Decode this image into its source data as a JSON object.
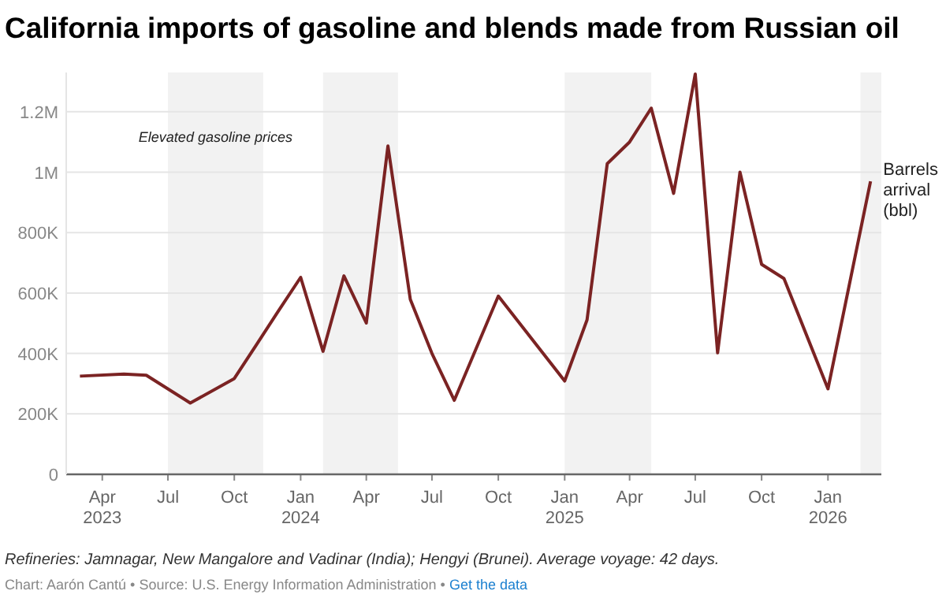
{
  "chart_data": {
    "type": "line",
    "title": "California imports of gasoline and blends made from Russian oil",
    "x": [
      "2023-03",
      "2023-05",
      "2023-06",
      "2023-08",
      "2023-10",
      "2023-11",
      "2023-12",
      "2024-01",
      "2024-02",
      "2024-03",
      "2024-04",
      "2024-05",
      "2024-06",
      "2024-07",
      "2024-08",
      "2024-10",
      "2025-01",
      "2025-02",
      "2025-03",
      "2025-04",
      "2025-05",
      "2025-06",
      "2025-07",
      "2025-08",
      "2025-09",
      "2025-10",
      "2025-11",
      "2026-01",
      "2026-03"
    ],
    "series": [
      {
        "name": "Barrels arrival (bbl)",
        "color": "#7b2323",
        "values": [
          325000,
          332000,
          328000,
          236000,
          317000,
          430000,
          540000,
          652000,
          407000,
          657000,
          501000,
          1087000,
          579000,
          400000,
          245000,
          590000,
          309000,
          511000,
          1028000,
          1100000,
          1212000,
          930000,
          1325000,
          402000,
          1000000,
          695000,
          648000,
          283000,
          970000
        ]
      }
    ],
    "xlim": [
      "2023-02-10",
      "2026-03-16"
    ],
    "xticks": [
      {
        "value": "2023-04",
        "label": "Apr 2023"
      },
      {
        "value": "2023-07",
        "label": "Jul"
      },
      {
        "value": "2023-10",
        "label": "Oct"
      },
      {
        "value": "2024-01",
        "label": "Jan 2024"
      },
      {
        "value": "2024-04",
        "label": "Apr"
      },
      {
        "value": "2024-07",
        "label": "Jul"
      },
      {
        "value": "2024-10",
        "label": "Oct"
      },
      {
        "value": "2025-01",
        "label": "Jan 2025"
      },
      {
        "value": "2025-04",
        "label": "Apr"
      },
      {
        "value": "2025-07",
        "label": "Jul"
      },
      {
        "value": "2025-10",
        "label": "Oct"
      },
      {
        "value": "2026-01",
        "label": "Jan 2026"
      }
    ],
    "ylim": [
      0,
      1330000
    ],
    "yticks": [
      0,
      {
        "value": 200000,
        "label": "200K"
      },
      {
        "value": 400000,
        "label": "400K"
      },
      {
        "value": 600000,
        "label": "600K"
      },
      {
        "value": 800000,
        "label": "800K"
      },
      {
        "value": 1000000,
        "label": "1M"
      },
      {
        "value": 1200000,
        "label": "1.2M"
      }
    ],
    "bands": [
      {
        "axis": "x",
        "from": "2023-07-01",
        "to": "2023-11-10",
        "label": "Elevated gasoline prices",
        "color": "#f2f2f2"
      },
      {
        "axis": "x",
        "from": "2024-02-01",
        "to": "2024-05-15",
        "color": "#f2f2f2"
      },
      {
        "axis": "x",
        "from": "2025-01-01",
        "to": "2025-05-01",
        "color": "#f2f2f2"
      },
      {
        "axis": "x",
        "from": "2026-02-15",
        "to": "2026-03-16",
        "color": "#f2f2f2"
      }
    ],
    "grid": "y",
    "legend": false,
    "line_style": "solid",
    "marker": "none",
    "annotations": [
      "Refineries: Jamnagar, New Mangalore and Vadinar (India); Hengyi (Brunei). Average voyage: 42 days.",
      "Chart: Aarón Cantú • Source: U.S. Energy Information Administration • ",
      "Get the data"
    ]
  }
}
